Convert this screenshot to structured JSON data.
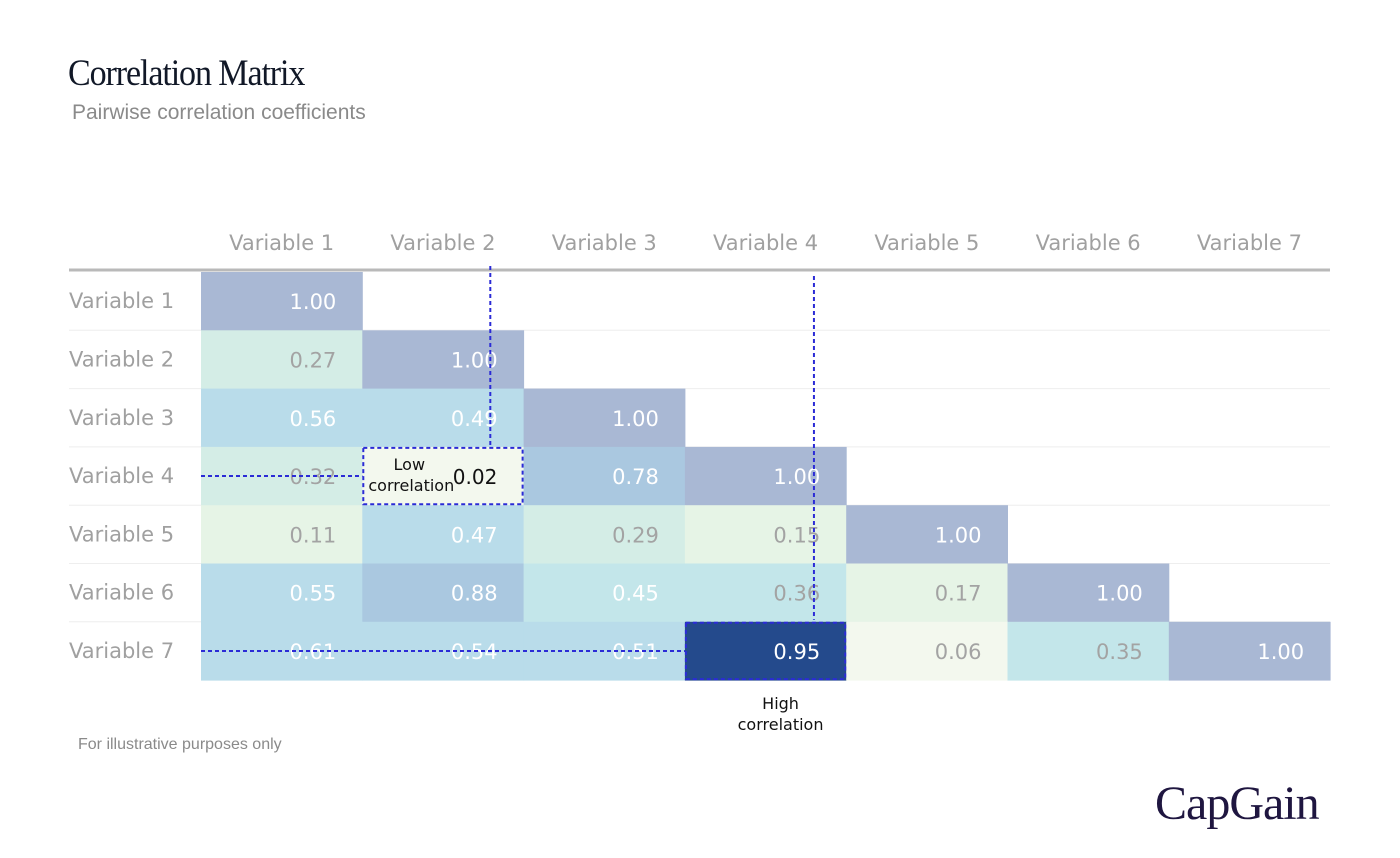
{
  "header": {
    "title": "Correlation Matrix",
    "subtitle": "Pairwise correlation coefficients"
  },
  "chart_data": {
    "type": "heatmap",
    "title": "Correlation Matrix",
    "subtitle": "Pairwise correlation coefficients",
    "variables": [
      "Variable 1",
      "Variable 2",
      "Variable 3",
      "Variable 4",
      "Variable 5",
      "Variable 6",
      "Variable 7"
    ],
    "matrix_lower": [
      [
        1.0
      ],
      [
        0.27,
        1.0
      ],
      [
        0.56,
        0.49,
        1.0
      ],
      [
        0.32,
        0.02,
        0.78,
        1.0
      ],
      [
        0.11,
        0.47,
        0.29,
        0.15,
        1.0
      ],
      [
        0.55,
        0.88,
        0.45,
        0.36,
        0.17,
        1.0
      ],
      [
        0.61,
        0.54,
        0.51,
        0.95,
        0.06,
        0.35,
        1.0
      ]
    ],
    "value_format": "0.00",
    "color_scale": [
      "#f3f8ee",
      "#e6f4e6",
      "#d4ede6",
      "#c3e6ea",
      "#b9dcea",
      "#aac8e0",
      "#a9b8d4"
    ],
    "diagonal_color": "#a9b8d4",
    "highlight_color": "#244a8c",
    "annotations": [
      {
        "row": 3,
        "col": 1,
        "label": "Low correlation"
      },
      {
        "row": 6,
        "col": 3,
        "label": "High correlation"
      }
    ]
  },
  "footnote": "For illustrative purposes only",
  "brand": {
    "name": "CapGain",
    "color": "#1f1640"
  }
}
